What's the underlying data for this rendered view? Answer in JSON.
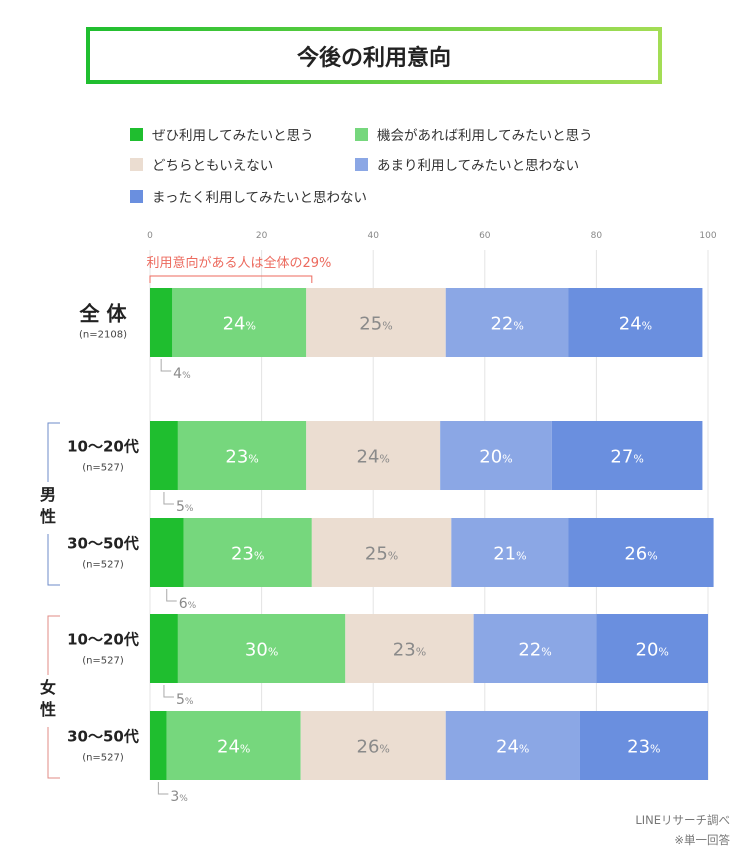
{
  "title": "今後の利用意向",
  "colors": [
    "#1fbe2f",
    "#76d77d",
    "#ebddd1",
    "#8ba7e5",
    "#6a8fdf"
  ],
  "chart_data": {
    "type": "bar",
    "orientation": "horizontal",
    "stacked": true,
    "xlim": [
      0,
      100
    ],
    "xticks": [
      0,
      20,
      40,
      60,
      80,
      100
    ],
    "grid": true,
    "legend_position": "top",
    "series_names": [
      "ぜひ利用してみたいと思う",
      "機会があれば利用してみたいと思う",
      "どちらともいえない",
      "あまり利用してみたいと思わない",
      "まったく利用してみたいと思わない"
    ],
    "rows": [
      {
        "label": "全 体",
        "n": "(n=2108)",
        "values": [
          4,
          24,
          25,
          22,
          24
        ]
      },
      {
        "label": "10〜20代",
        "n": "(n=527)",
        "values": [
          5,
          23,
          24,
          20,
          27
        ]
      },
      {
        "label": "30〜50代",
        "n": "(n=527)",
        "values": [
          6,
          23,
          25,
          21,
          26
        ]
      },
      {
        "label": "10〜20代",
        "n": "(n=527)",
        "values": [
          5,
          30,
          23,
          22,
          20
        ]
      },
      {
        "label": "30〜50代",
        "n": "(n=527)",
        "values": [
          3,
          24,
          26,
          24,
          23
        ]
      }
    ],
    "groups": [
      {
        "label": "男\n性",
        "rows": [
          1,
          2
        ]
      },
      {
        "label": "女\n性",
        "rows": [
          3,
          4
        ]
      }
    ],
    "annotation": {
      "text": "利用意向がある人は全体の29%",
      "value": 29
    },
    "percent_suffix": "%"
  },
  "footer": {
    "source": "LINEリサーチ調べ",
    "note": "※単一回答"
  }
}
